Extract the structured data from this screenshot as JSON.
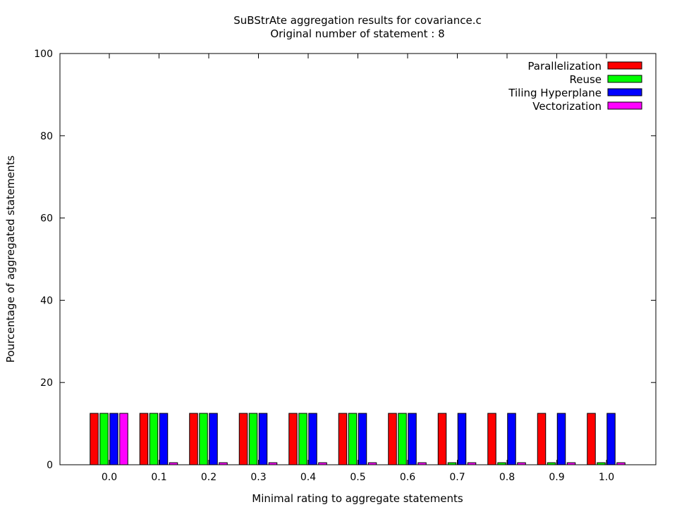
{
  "chart_data": {
    "type": "bar",
    "title": "SuBStrAte aggregation results for covariance.c",
    "subtitle": "Original number of statement : 8",
    "xlabel": "Minimal rating to aggregate statements",
    "ylabel": "Pourcentage of aggregated statements",
    "ylim": [
      0,
      100
    ],
    "yticks": [
      0,
      20,
      40,
      60,
      80,
      100
    ],
    "categories": [
      "0.0",
      "0.1",
      "0.2",
      "0.3",
      "0.4",
      "0.5",
      "0.6",
      "0.7",
      "0.8",
      "0.9",
      "1.0"
    ],
    "legend_position": "top-right",
    "grid": false,
    "series": [
      {
        "name": "Parallelization",
        "color": "#ff0000",
        "values": [
          12.5,
          12.5,
          12.5,
          12.5,
          12.5,
          12.5,
          12.5,
          12.5,
          12.5,
          12.5,
          12.5
        ]
      },
      {
        "name": "Reuse",
        "color": "#00ff00",
        "values": [
          12.5,
          12.5,
          12.5,
          12.5,
          12.5,
          12.5,
          12.5,
          0.5,
          0.5,
          0.5,
          0.5
        ]
      },
      {
        "name": "Tiling Hyperplane",
        "color": "#0000ff",
        "values": [
          12.5,
          12.5,
          12.5,
          12.5,
          12.5,
          12.5,
          12.5,
          12.5,
          12.5,
          12.5,
          12.5
        ]
      },
      {
        "name": "Vectorization",
        "color": "#ff00ff",
        "values": [
          12.5,
          0.5,
          0.5,
          0.5,
          0.5,
          0.5,
          0.5,
          0.5,
          0.5,
          0.5,
          0.5
        ]
      }
    ]
  }
}
